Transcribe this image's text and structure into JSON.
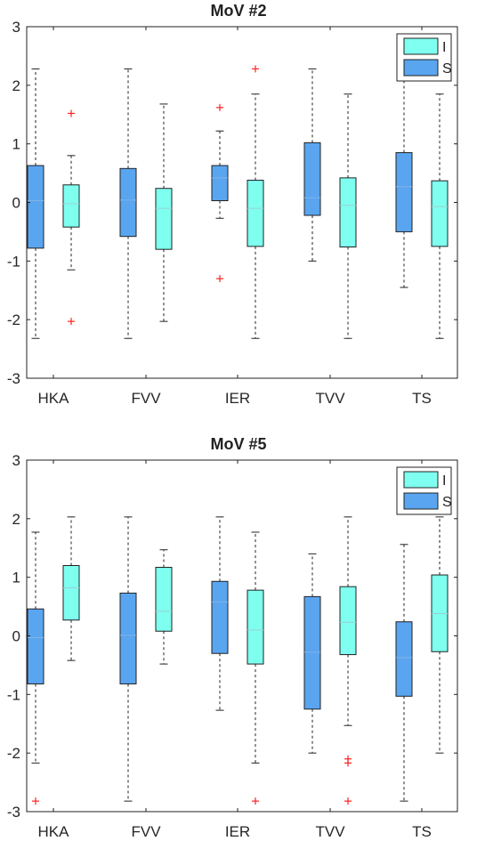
{
  "colors": {
    "I": "#7ffff0",
    "S": "#5aa5f0",
    "box_edge": "#222222",
    "whisker": "#222222",
    "median_I": "#9ad0d0",
    "median_S": "#7fb4e6",
    "outlier": "#ff2222",
    "axes": "#222222"
  },
  "chart_data": [
    {
      "type": "boxplot",
      "title": "MoV #2",
      "xlabel": "",
      "ylabel": "",
      "ylim": [
        -3,
        3
      ],
      "yticks": [
        -3,
        -2,
        -1,
        0,
        1,
        2,
        3
      ],
      "ytick_labels": [
        "-3",
        "-2",
        "-1",
        "0",
        "1",
        "2",
        "3"
      ],
      "grid": false,
      "legend_position": "top-right",
      "categories": [
        "HKA",
        "FVV",
        "IER",
        "TVV",
        "TS"
      ],
      "series": [
        {
          "name": "I",
          "boxes": [
            {
              "whislo": -1.15,
              "q1": -0.42,
              "med": -0.02,
              "q3": 0.3,
              "whishi": 0.8,
              "fliers": [
                1.52,
                -2.03
              ]
            },
            {
              "whislo": -2.03,
              "q1": -0.8,
              "med": -0.1,
              "q3": 0.24,
              "whishi": 1.68,
              "fliers": []
            },
            {
              "whislo": -2.32,
              "q1": -0.75,
              "med": -0.1,
              "q3": 0.38,
              "whishi": 1.85,
              "fliers": [
                2.28
              ]
            },
            {
              "whislo": -2.32,
              "q1": -0.76,
              "med": -0.05,
              "q3": 0.42,
              "whishi": 1.85,
              "fliers": []
            },
            {
              "whislo": -2.32,
              "q1": -0.75,
              "med": -0.07,
              "q3": 0.37,
              "whishi": 1.85,
              "fliers": []
            }
          ]
        },
        {
          "name": "S",
          "boxes": [
            {
              "whislo": -2.32,
              "q1": -0.78,
              "med": 0.03,
              "q3": 0.63,
              "whishi": 2.28,
              "fliers": []
            },
            {
              "whislo": -2.32,
              "q1": -0.58,
              "med": 0.04,
              "q3": 0.58,
              "whishi": 2.28,
              "fliers": []
            },
            {
              "whislo": -0.27,
              "q1": 0.03,
              "med": 0.42,
              "q3": 0.63,
              "whishi": 1.22,
              "fliers": [
                1.62,
                -1.3
              ]
            },
            {
              "whislo": -1.0,
              "q1": -0.22,
              "med": 0.08,
              "q3": 1.02,
              "whishi": 2.28,
              "fliers": []
            },
            {
              "whislo": -1.45,
              "q1": -0.5,
              "med": 0.27,
              "q3": 0.85,
              "whishi": 2.28,
              "fliers": []
            }
          ]
        }
      ]
    },
    {
      "type": "boxplot",
      "title": "MoV #5",
      "xlabel": "",
      "ylabel": "",
      "ylim": [
        -3,
        3
      ],
      "yticks": [
        -3,
        -2,
        -1,
        0,
        1,
        2,
        3
      ],
      "ytick_labels": [
        "-3",
        "-2",
        "-1",
        "0",
        "1",
        "2",
        "3"
      ],
      "grid": false,
      "legend_position": "top-right",
      "categories": [
        "HKA",
        "FVV",
        "IER",
        "TVV",
        "TS"
      ],
      "series": [
        {
          "name": "I",
          "boxes": [
            {
              "whislo": -0.42,
              "q1": 0.27,
              "med": 0.82,
              "q3": 1.2,
              "whishi": 2.03,
              "fliers": []
            },
            {
              "whislo": -0.48,
              "q1": 0.08,
              "med": 0.42,
              "q3": 1.17,
              "whishi": 1.47,
              "fliers": []
            },
            {
              "whislo": -2.17,
              "q1": -0.48,
              "med": 0.1,
              "q3": 0.78,
              "whishi": 1.77,
              "fliers": [
                -2.82
              ]
            },
            {
              "whislo": -1.53,
              "q1": -0.32,
              "med": 0.23,
              "q3": 0.84,
              "whishi": 2.03,
              "fliers": [
                -2.1,
                -2.17,
                -2.82
              ]
            },
            {
              "whislo": -2.0,
              "q1": -0.27,
              "med": 0.38,
              "q3": 1.04,
              "whishi": 2.03,
              "fliers": []
            }
          ]
        },
        {
          "name": "S",
          "boxes": [
            {
              "whislo": -2.17,
              "q1": -0.82,
              "med": -0.03,
              "q3": 0.46,
              "whishi": 1.77,
              "fliers": [
                -2.82
              ]
            },
            {
              "whislo": -2.82,
              "q1": -0.82,
              "med": 0.01,
              "q3": 0.73,
              "whishi": 2.03,
              "fliers": []
            },
            {
              "whislo": -1.27,
              "q1": -0.3,
              "med": 0.58,
              "q3": 0.93,
              "whishi": 2.03,
              "fliers": []
            },
            {
              "whislo": -2.0,
              "q1": -1.25,
              "med": -0.28,
              "q3": 0.67,
              "whishi": 1.4,
              "fliers": []
            },
            {
              "whislo": -2.82,
              "q1": -1.03,
              "med": -0.37,
              "q3": 0.24,
              "whishi": 1.56,
              "fliers": []
            }
          ]
        }
      ]
    }
  ]
}
